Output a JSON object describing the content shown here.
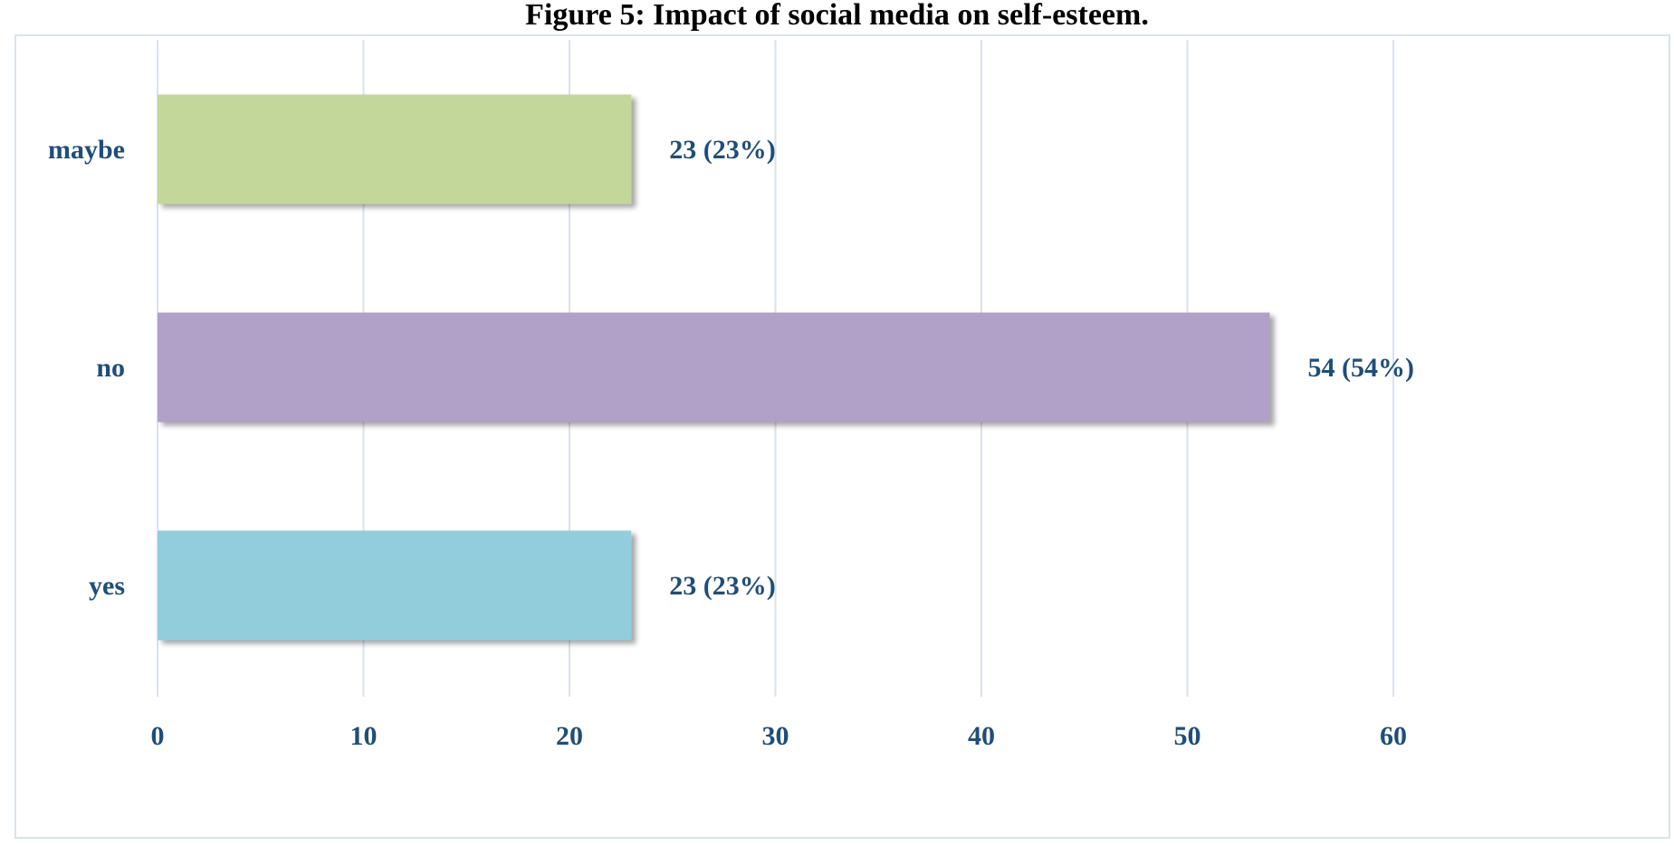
{
  "chart_data": {
    "type": "bar",
    "orientation": "horizontal",
    "title": "Figure 5: Impact of social media on self-esteem.",
    "categories": [
      "maybe",
      "no",
      "yes"
    ],
    "values": [
      23,
      54,
      23
    ],
    "data_labels": [
      "23 (23%)",
      "54 (54%)",
      "23 (23%)"
    ],
    "bar_colors": [
      "#c4d79b",
      "#b1a0c7",
      "#92cddc"
    ],
    "xlim": [
      0,
      70
    ],
    "x_ticks": [
      0,
      10,
      20,
      30,
      40,
      50,
      60
    ],
    "grid": true,
    "legend": "none",
    "xlabel": "",
    "ylabel": ""
  },
  "colors": {
    "label_text": "#1f4e79",
    "grid": "#d7e3f0",
    "frame": "#d7e3f0"
  }
}
